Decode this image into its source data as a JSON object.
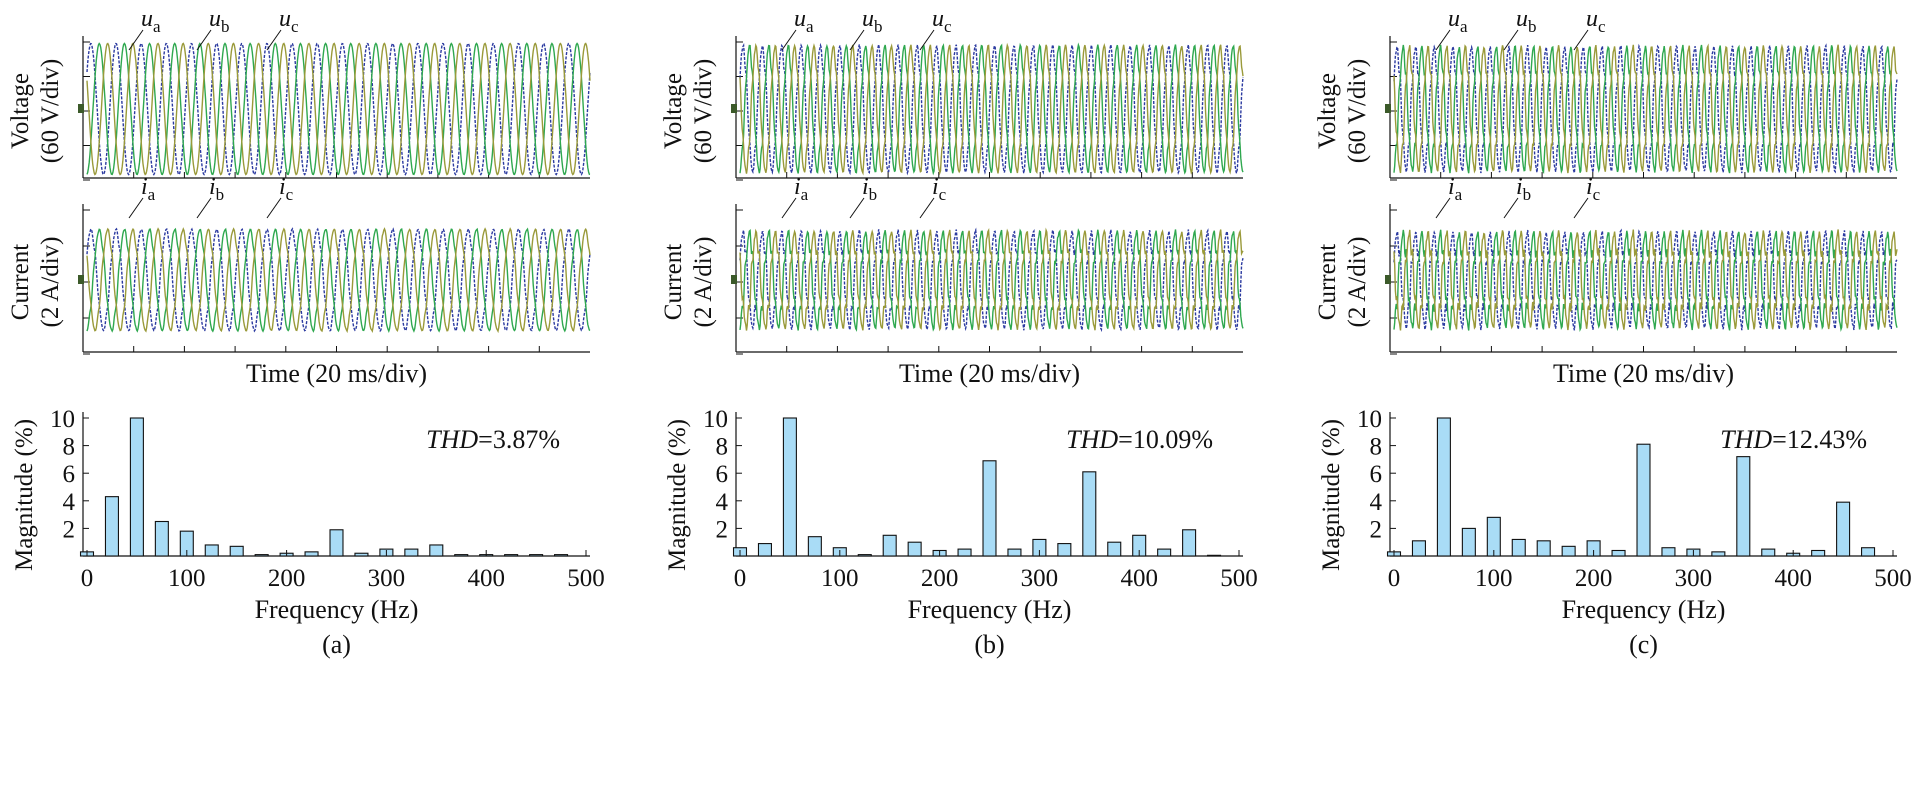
{
  "colors": {
    "phase_a": "#2b3aa0",
    "phase_b": "#2fa84f",
    "phase_c": "#9a9a3a",
    "bar_fill": "#a9dcf6",
    "axis": "#111111"
  },
  "labels": {
    "voltage_ylabel": [
      "Voltage",
      "(60 V/div)"
    ],
    "current_ylabel": [
      "Current",
      "(2 A/div)"
    ],
    "time_xlabel": "Time (20 ms/div)",
    "freq_xlabel": "Frequency (Hz)",
    "mag_ylabel": "Magnitude (%)",
    "voltage_phases": [
      "u",
      "u",
      "u"
    ],
    "current_phases": [
      "i",
      "i",
      "i"
    ],
    "phase_subscripts": [
      "a",
      "b",
      "c"
    ],
    "thd_prefix": "THD"
  },
  "chart_data": [
    {
      "type": "bar",
      "panel": "(a)",
      "thd_text": "=3.87%",
      "xlabel": "Frequency (Hz)",
      "ylabel": "Magnitude (%)",
      "xlim": [
        0,
        500
      ],
      "ylim": [
        0,
        10
      ],
      "xticks": [
        0,
        100,
        200,
        300,
        400,
        500
      ],
      "yticks": [
        2,
        4,
        6,
        8,
        10
      ],
      "x": [
        0,
        25,
        50,
        75,
        100,
        125,
        150,
        175,
        200,
        225,
        250,
        275,
        300,
        325,
        350,
        375,
        400,
        425,
        450,
        475
      ],
      "values": [
        0.3,
        4.3,
        10.0,
        2.5,
        1.8,
        0.8,
        0.7,
        0.1,
        0.2,
        0.3,
        1.9,
        0.2,
        0.5,
        0.5,
        0.8,
        0.1,
        0.1,
        0.1,
        0.1,
        0.1
      ]
    },
    {
      "type": "bar",
      "panel": "(b)",
      "thd_text": "=10.09%",
      "xlabel": "Frequency (Hz)",
      "ylabel": "Magnitude (%)",
      "xlim": [
        0,
        500
      ],
      "ylim": [
        0,
        10
      ],
      "xticks": [
        0,
        100,
        200,
        300,
        400,
        500
      ],
      "yticks": [
        2,
        4,
        6,
        8,
        10
      ],
      "x": [
        0,
        25,
        50,
        75,
        100,
        125,
        150,
        175,
        200,
        225,
        250,
        275,
        300,
        325,
        350,
        375,
        400,
        425,
        450,
        475
      ],
      "values": [
        0.6,
        0.9,
        10.0,
        1.4,
        0.6,
        0.1,
        1.5,
        1.0,
        0.4,
        0.5,
        6.9,
        0.5,
        1.2,
        0.9,
        6.1,
        1.0,
        1.5,
        0.5,
        1.9,
        0.05
      ]
    },
    {
      "type": "bar",
      "panel": "(c)",
      "thd_text": "=12.43%",
      "xlabel": "Frequency (Hz)",
      "ylabel": "Magnitude (%)",
      "xlim": [
        0,
        500
      ],
      "ylim": [
        0,
        10
      ],
      "xticks": [
        0,
        100,
        200,
        300,
        400,
        500
      ],
      "yticks": [
        2,
        4,
        6,
        8,
        10
      ],
      "x": [
        0,
        25,
        50,
        75,
        100,
        125,
        150,
        175,
        200,
        225,
        250,
        275,
        300,
        325,
        350,
        375,
        400,
        425,
        450,
        475
      ],
      "values": [
        0.3,
        1.1,
        10.0,
        2.0,
        2.8,
        1.2,
        1.1,
        0.7,
        1.1,
        0.4,
        8.1,
        0.6,
        0.5,
        0.3,
        7.2,
        0.5,
        0.2,
        0.4,
        3.9,
        0.6
      ]
    }
  ],
  "waveforms": [
    {
      "panel": "(a)",
      "cycles": 20,
      "voltage_distortion": 0.0,
      "current_distortion": 0.04
    },
    {
      "panel": "(b)",
      "cycles": 26,
      "voltage_distortion": 0.06,
      "current_distortion": 0.12
    },
    {
      "panel": "(c)",
      "cycles": 27,
      "voltage_distortion": 0.09,
      "current_distortion": 0.15
    }
  ]
}
